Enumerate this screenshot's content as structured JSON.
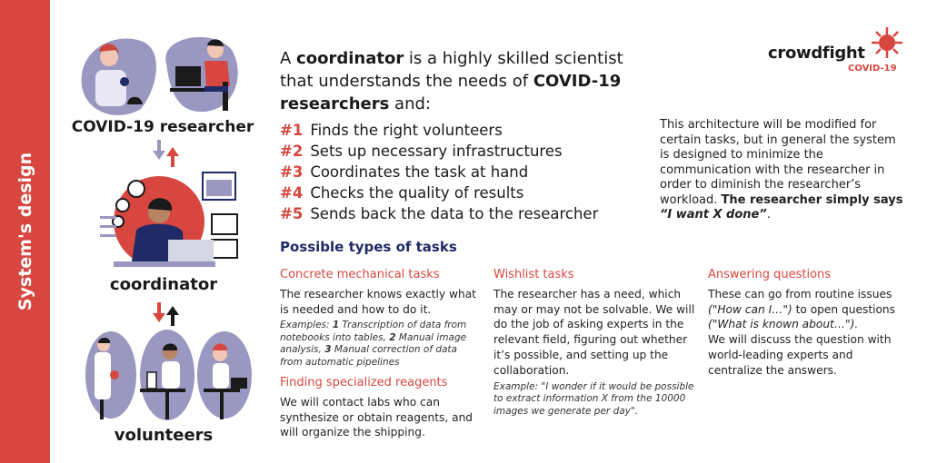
{
  "sidebar": {
    "title": "System's design"
  },
  "roles": {
    "researcher": "COVID-19 researcher",
    "coordinator": "coordinator",
    "volunteers": "volunteers"
  },
  "logo": {
    "name": "crowdfight",
    "sub": "COVID-19"
  },
  "intro": {
    "part1": "A ",
    "bold1": "coordinator",
    "part2": " is a highly skilled scientist that understands the needs of ",
    "bold2": "COVID-19 researchers",
    "part3": " and:"
  },
  "steps": [
    {
      "num": "#1",
      "text": "Finds the right volunteers"
    },
    {
      "num": "#2",
      "text": "Sets up necessary infrastructures"
    },
    {
      "num": "#3",
      "text": "Coordinates the task at hand"
    },
    {
      "num": "#4",
      "text": "Checks the quality of results"
    },
    {
      "num": "#5",
      "text": "Sends back the data to the researcher"
    }
  ],
  "architecture": {
    "text": "This architecture will be modified for certain tasks, but in general the system is designed to minimize the communication with the researcher in order to diminish the researcher’s workload. ",
    "bold": "The researcher simply says ",
    "quote": "“I want X done”",
    "end": "."
  },
  "tasks_title": "Possible types of tasks",
  "columns": {
    "concrete": {
      "heading": "Concrete mechanical tasks",
      "body": "The researcher knows exactly what is needed and how to do it.",
      "ex_label": "Examples: ",
      "ex1_num": "1",
      "ex1": " Transcription of data from notebooks into tables, ",
      "ex2_num": "2",
      "ex2": " Manual image analysis, ",
      "ex3_num": "3",
      "ex3": " Manual correction of data from automatic pipelines"
    },
    "reagents": {
      "heading": "Finding specialized reagents",
      "body": "We will contact labs who can synthesize or obtain reagents, and will organize the shipping."
    },
    "wishlist": {
      "heading": "Wishlist tasks",
      "body": "The researcher has a need, which may or may not be solvable. We will do the job of asking experts in the relevant field, figuring out whether it’s possible, and setting up the collaboration.",
      "example": "Example: \"I wonder if it would be possible to extract information X from the 10000 images we generate per day\"."
    },
    "questions": {
      "heading": "Answering questions",
      "b1": "These can go from routine issues ",
      "q1": "(\"How can I…\")",
      "b2": " to  open questions ",
      "q2": "(\"What is known about…\").",
      "b3": "We will discuss the question with world-leading experts and centralize the answers."
    }
  },
  "colors": {
    "accent": "#d7473f",
    "navy": "#1f2a66",
    "lavender": "#9a97c0",
    "purple": "#7d7bb0"
  }
}
